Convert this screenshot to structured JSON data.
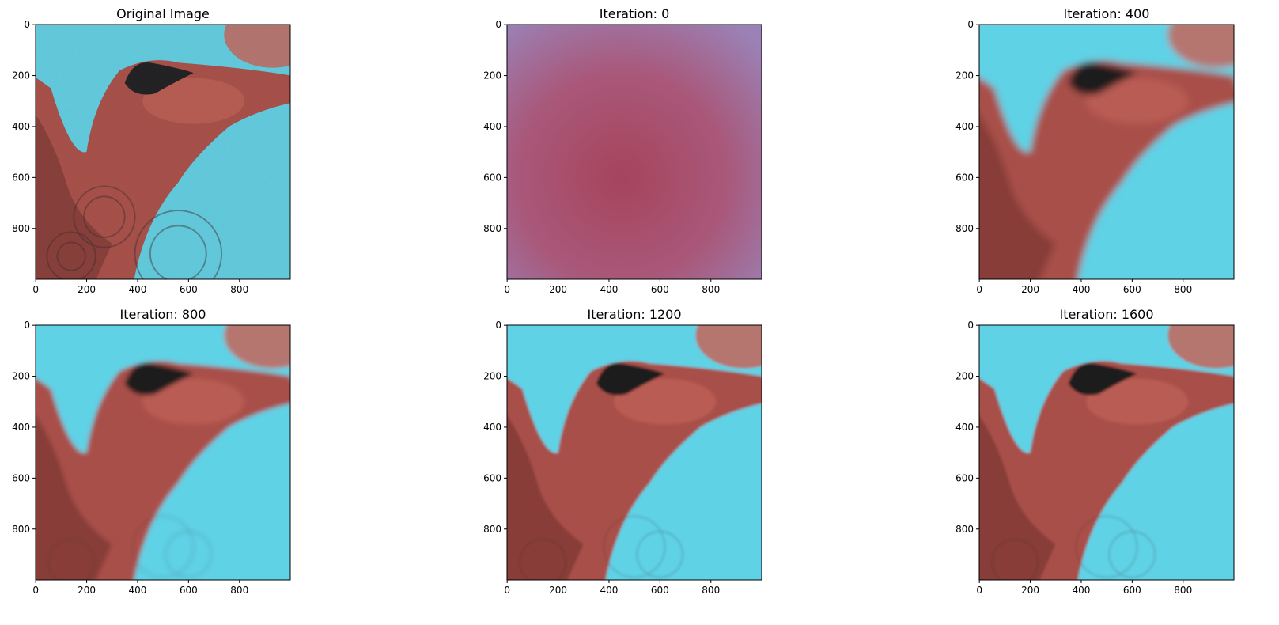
{
  "chart_data": [
    {
      "type": "image",
      "title": "Original Image",
      "variant": "original",
      "xticks": [
        0,
        200,
        400,
        600,
        800
      ],
      "yticks": [
        0,
        200,
        400,
        600,
        800
      ],
      "xlim": [
        0,
        999
      ],
      "ylim": [
        999,
        0
      ]
    },
    {
      "type": "image",
      "title": "Iteration: 0",
      "variant": "iter0",
      "xticks": [
        0,
        200,
        400,
        600,
        800
      ],
      "yticks": [
        0,
        200,
        400,
        600,
        800
      ],
      "xlim": [
        0,
        999
      ],
      "ylim": [
        999,
        0
      ]
    },
    {
      "type": "image",
      "title": "Iteration: 400",
      "variant": "iter400",
      "xticks": [
        0,
        200,
        400,
        600,
        800
      ],
      "yticks": [
        0,
        200,
        400,
        600,
        800
      ],
      "xlim": [
        0,
        999
      ],
      "ylim": [
        999,
        0
      ]
    },
    {
      "type": "image",
      "title": "Iteration: 800",
      "variant": "iter800",
      "xticks": [
        0,
        200,
        400,
        600,
        800
      ],
      "yticks": [
        0,
        200,
        400,
        600,
        800
      ],
      "xlim": [
        0,
        999
      ],
      "ylim": [
        999,
        0
      ]
    },
    {
      "type": "image",
      "title": "Iteration: 1200",
      "variant": "iter1200",
      "xticks": [
        0,
        200,
        400,
        600,
        800
      ],
      "yticks": [
        0,
        200,
        400,
        600,
        800
      ],
      "xlim": [
        0,
        999
      ],
      "ylim": [
        999,
        0
      ]
    },
    {
      "type": "image",
      "title": "Iteration: 1600",
      "variant": "iter1600",
      "xticks": [
        0,
        200,
        400,
        600,
        800
      ],
      "yticks": [
        0,
        200,
        400,
        600,
        800
      ],
      "xlim": [
        0,
        999
      ],
      "ylim": [
        999,
        0
      ]
    }
  ],
  "colors": {
    "cyan": "#5fd2e6",
    "flesh": "#a94f48",
    "flesh_light": "#c5665a",
    "flesh_dark": "#6e302c",
    "eye": "#1b1d1f",
    "iter0_center": "#a6445c",
    "iter0_corner": "#9a82b6",
    "axis": "#000000"
  }
}
